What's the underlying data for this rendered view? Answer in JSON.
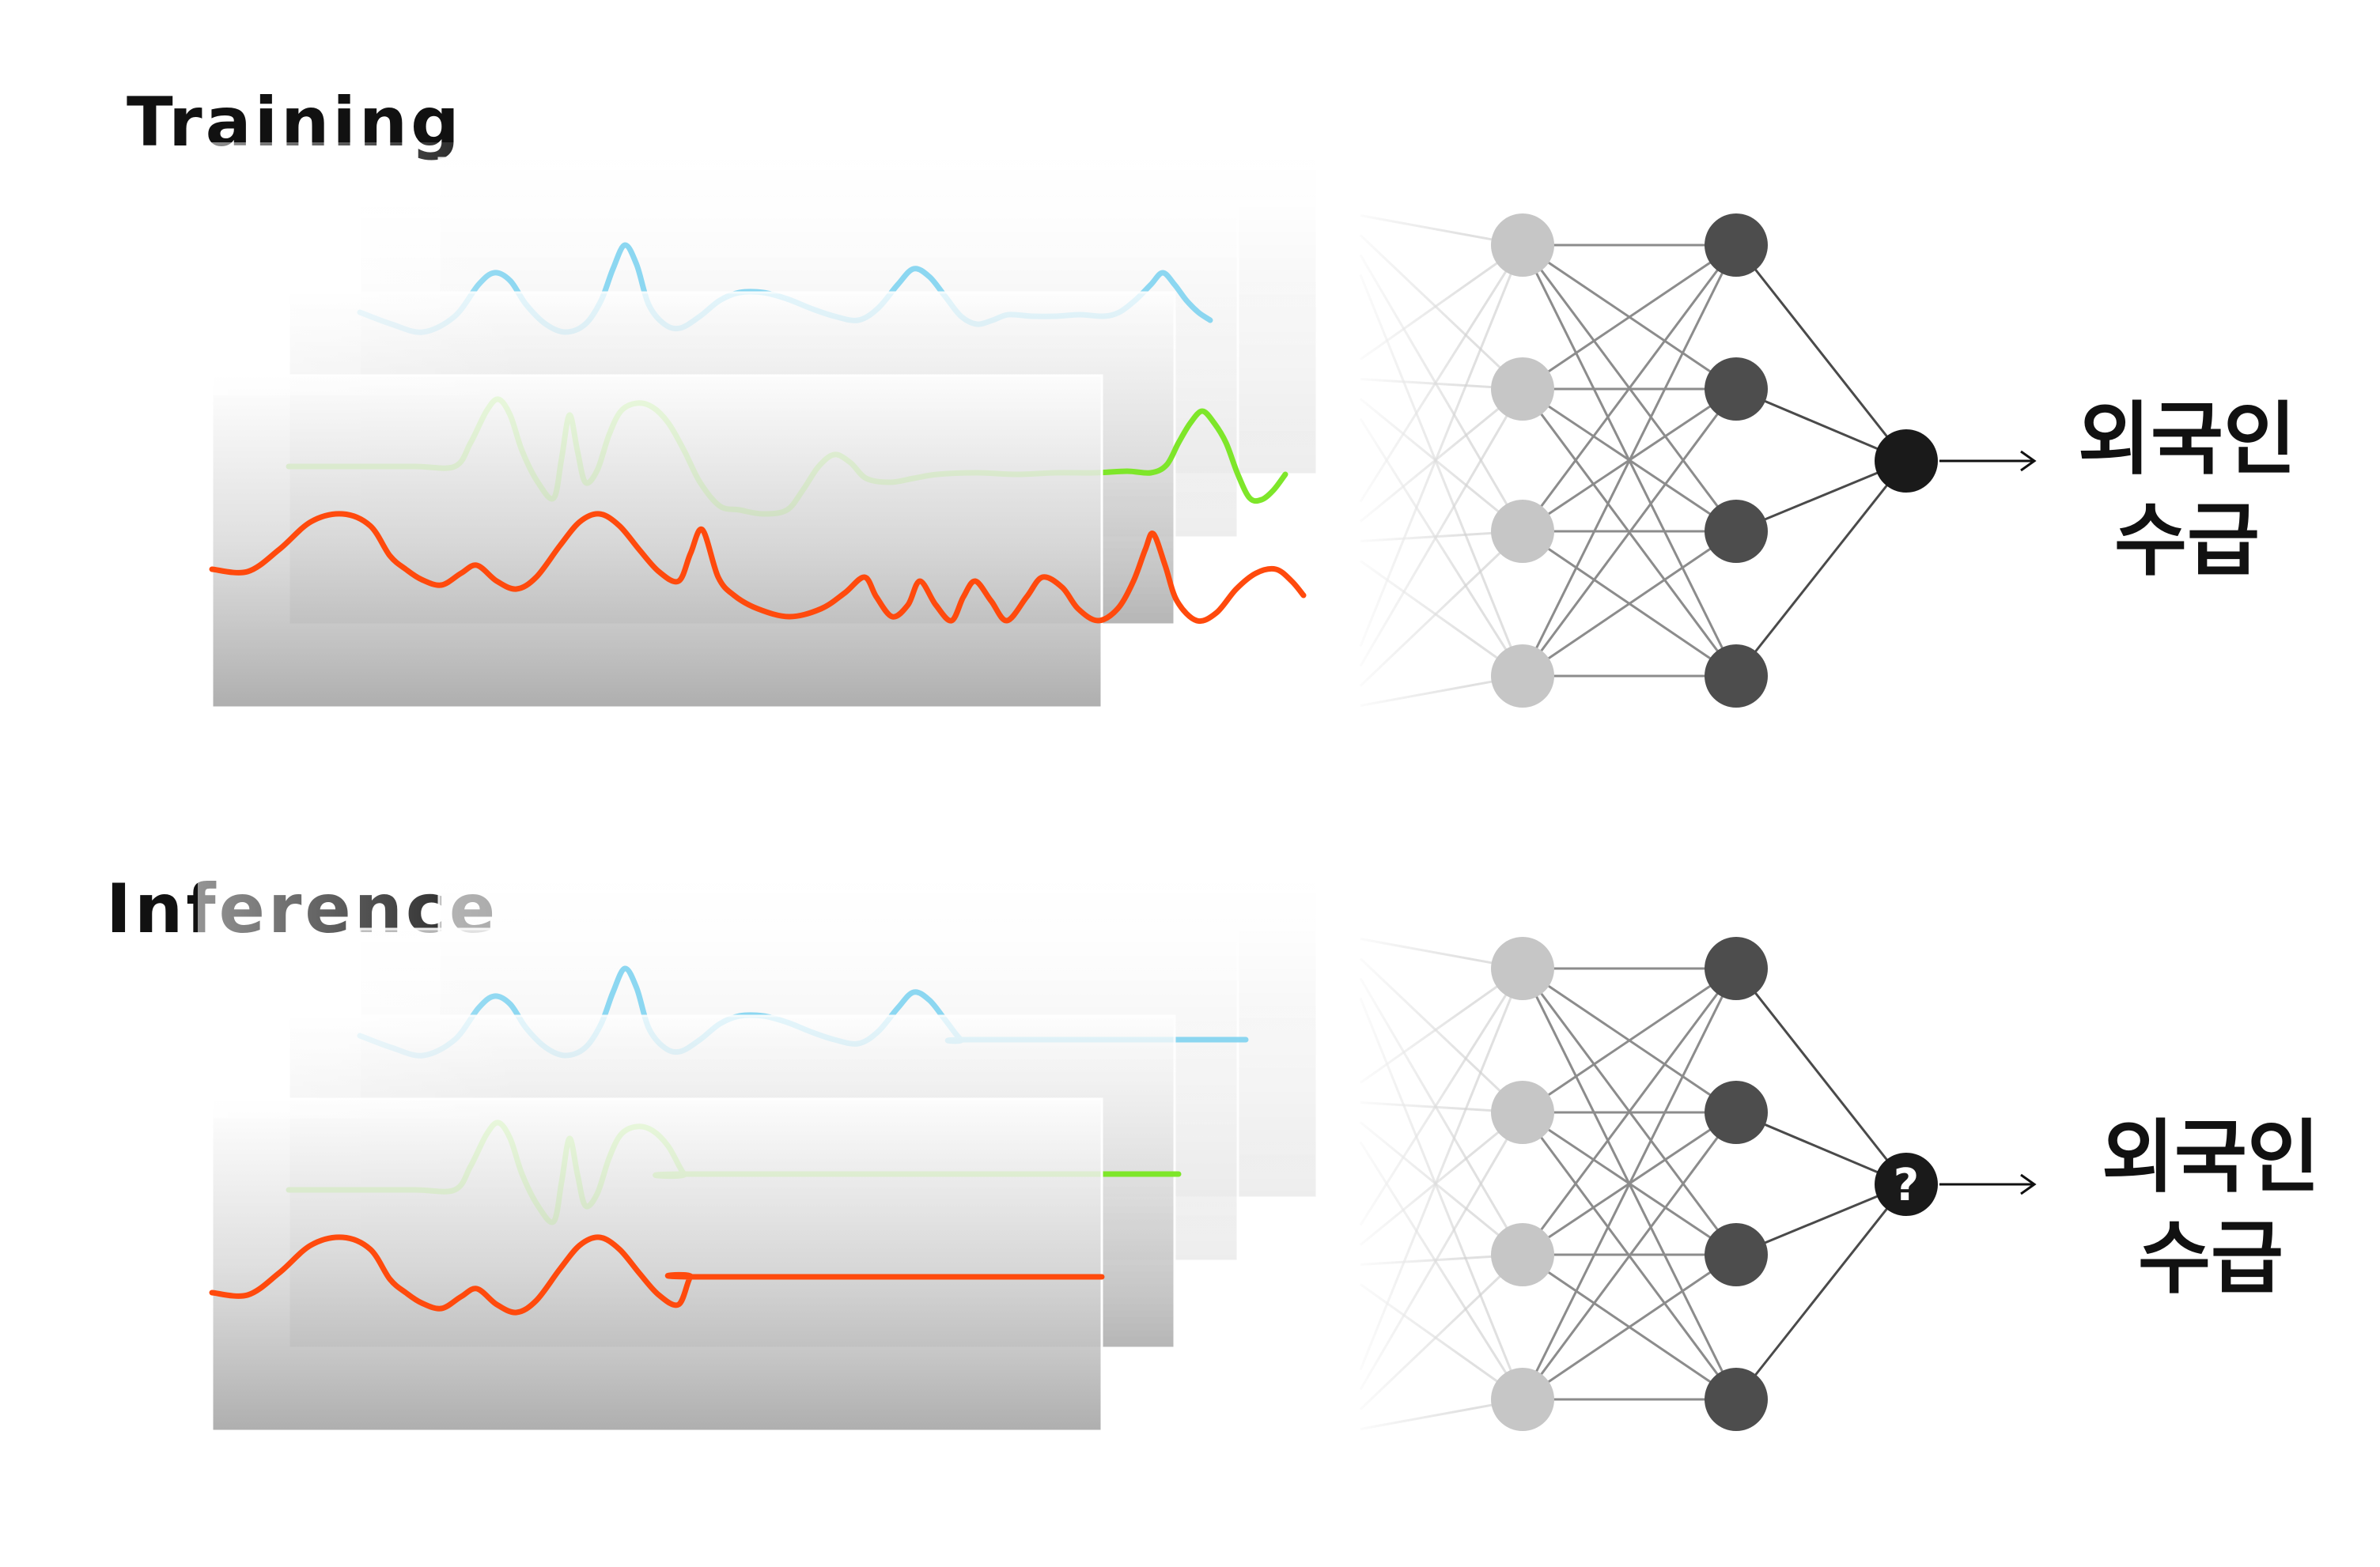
{
  "training": {
    "title": "Training",
    "output_label_line1": "외국인",
    "output_label_line2": "수급"
  },
  "inference": {
    "title": "Inference",
    "output_label_line1": "외국인",
    "output_label_line2": "수급",
    "unknown_symbol": "?"
  },
  "colors": {
    "series_back": "#7fd3ef",
    "series_middle": "#7ee62a",
    "series_front": "#ff4a0d",
    "node_input": "#c6c6c6",
    "node_hidden": "#4d4d4d",
    "node_output": "#1a1a1a"
  },
  "icons": {
    "arrow": "right-arrow-icon",
    "question": "question-mark-icon"
  }
}
